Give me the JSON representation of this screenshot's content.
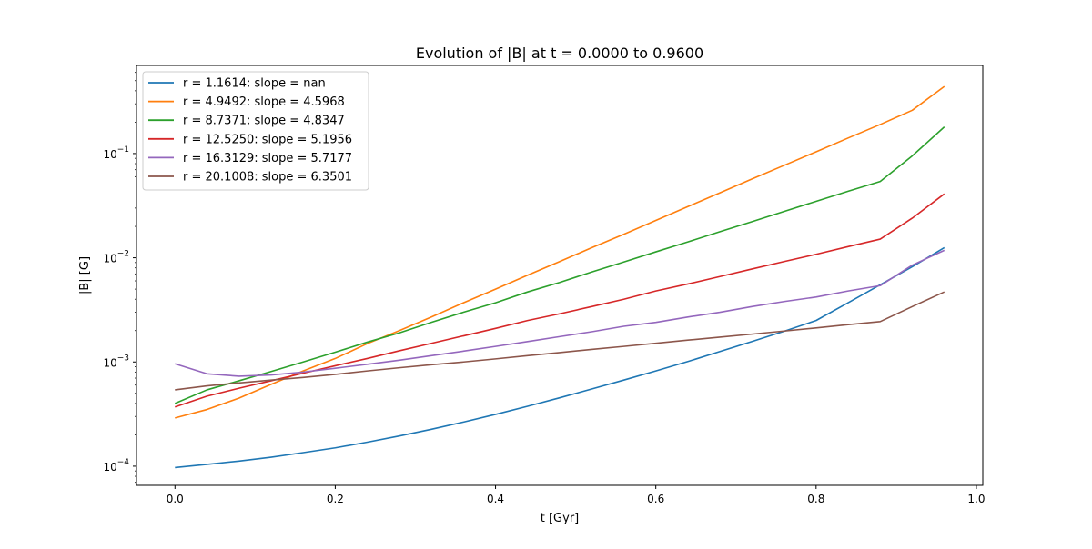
{
  "chart_data": {
    "type": "line",
    "title": "Evolution of |B| at t = 0.0000 to 0.9600",
    "xlabel": "t [Gyr]",
    "ylabel": "|B| [G]",
    "xlim": [
      -0.048,
      1.008
    ],
    "ylim": [
      6.55e-05,
      0.7
    ],
    "yscale": "log",
    "grid": false,
    "legend_position": "top-left",
    "x_ticks": [
      0.0,
      0.2,
      0.4,
      0.6,
      0.8,
      1.0
    ],
    "x_tick_labels": [
      "0.0",
      "0.2",
      "0.4",
      "0.6",
      "0.8",
      "1.0"
    ],
    "y_ticks": [
      0.0001,
      0.001,
      0.01,
      0.1
    ],
    "y_tick_labels": [
      [
        "10",
        "−4"
      ],
      [
        "10",
        "−3"
      ],
      [
        "10",
        "−2"
      ],
      [
        "10",
        "−1"
      ]
    ],
    "x": [
      0.0,
      0.04,
      0.08,
      0.12,
      0.16,
      0.2,
      0.24,
      0.28,
      0.32,
      0.36,
      0.4,
      0.44,
      0.48,
      0.52,
      0.56,
      0.6,
      0.64,
      0.68,
      0.72,
      0.76,
      0.8,
      0.84,
      0.88,
      0.92,
      0.96
    ],
    "series": [
      {
        "name": "r = 1.1614: slope = nan",
        "color": "#1f77b4",
        "values": [
          9.7e-05,
          0.000104,
          0.000112,
          0.000122,
          0.000135,
          0.00015,
          0.00017,
          0.000195,
          0.000226,
          0.000265,
          0.000314,
          0.000376,
          0.000453,
          0.00055,
          0.00067,
          0.00082,
          0.00101,
          0.00126,
          0.00157,
          0.00197,
          0.0025,
          0.0037,
          0.0055,
          0.0082,
          0.0125
        ]
      },
      {
        "name": "r = 4.9492: slope = 4.5968",
        "color": "#ff7f0e",
        "values": [
          0.00029,
          0.00035,
          0.00045,
          0.00061,
          0.00082,
          0.00108,
          0.0015,
          0.002,
          0.0027,
          0.0037,
          0.005,
          0.0068,
          0.0092,
          0.0125,
          0.0168,
          0.0228,
          0.031,
          0.042,
          0.057,
          0.077,
          0.104,
          0.141,
          0.19,
          0.26,
          0.44
        ]
      },
      {
        "name": "r = 8.7371: slope = 4.8347",
        "color": "#2ca02c",
        "values": [
          0.0004,
          0.00054,
          0.00066,
          0.00081,
          0.001,
          0.00124,
          0.00155,
          0.0019,
          0.0024,
          0.003,
          0.0037,
          0.0047,
          0.0058,
          0.0073,
          0.0091,
          0.0114,
          0.0142,
          0.0178,
          0.0222,
          0.0278,
          0.0348,
          0.0435,
          0.054,
          0.095,
          0.18
        ]
      },
      {
        "name": "r = 12.5250: slope = 5.1956",
        "color": "#d62728",
        "values": [
          0.00037,
          0.00047,
          0.00056,
          0.00066,
          0.00078,
          0.00092,
          0.00108,
          0.00128,
          0.00151,
          0.00178,
          0.0021,
          0.0025,
          0.0029,
          0.0034,
          0.004,
          0.0048,
          0.0056,
          0.0066,
          0.0078,
          0.0092,
          0.0108,
          0.0128,
          0.0151,
          0.024,
          0.041
        ]
      },
      {
        "name": "r = 16.3129: slope = 5.7177",
        "color": "#9467bd",
        "values": [
          0.00096,
          0.00077,
          0.00073,
          0.00075,
          0.0008,
          0.00087,
          0.00095,
          0.00104,
          0.00115,
          0.00127,
          0.00141,
          0.00157,
          0.00175,
          0.00195,
          0.0022,
          0.0024,
          0.0027,
          0.003,
          0.0034,
          0.0038,
          0.0042,
          0.0048,
          0.0054,
          0.0085,
          0.0118
        ]
      },
      {
        "name": "r = 20.1008: slope = 6.3501",
        "color": "#8c564b",
        "values": [
          0.00054,
          0.00059,
          0.00063,
          0.00067,
          0.00071,
          0.00076,
          0.00082,
          0.00088,
          0.00094,
          0.001,
          0.00107,
          0.00115,
          0.00123,
          0.00132,
          0.00141,
          0.00151,
          0.00162,
          0.00173,
          0.00185,
          0.00198,
          0.00212,
          0.00228,
          0.00244,
          0.0034,
          0.0047
        ]
      }
    ]
  }
}
